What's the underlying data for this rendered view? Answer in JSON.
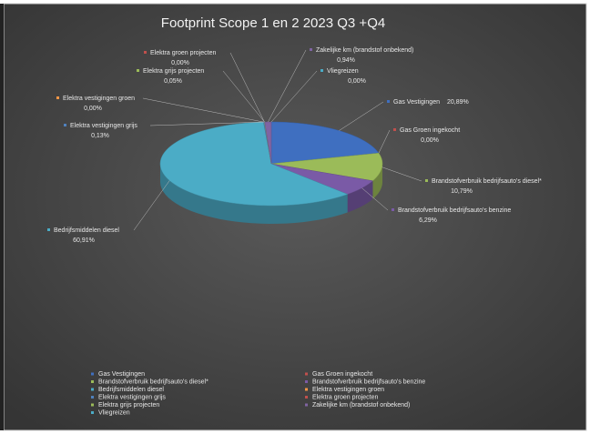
{
  "chart_data": {
    "type": "pie",
    "title": "Footprint Scope 1 en 2 2023  Q3 +Q4",
    "categories": [
      "Gas Vestigingen",
      "Gas Groen ingekocht",
      "Brandstofverbruik bedrijfsauto's diesel*",
      "Brandstofverbruik bedrijfsauto's benzine",
      "Bedrijfsmiddelen diesel",
      "Elektra vestigingen groen",
      "Elektra vestigingen grijs",
      "Elektra groen projecten",
      "Elektra grijs projecten",
      "Zakelijke km (brandstof onbekend)",
      "Vliegreizen"
    ],
    "values": [
      20.89,
      0,
      10.79,
      6.29,
      60.91,
      0,
      0.13,
      0,
      0.05,
      0.94,
      0
    ],
    "value_labels": [
      "20,89%",
      "0,00%",
      "10,79%",
      "6,29%",
      "60,91%",
      "0,00%",
      "0,13%",
      "0,00%",
      "0,05%",
      "0,94%",
      "0,00%"
    ],
    "colors": [
      "#3f6fc0",
      "#c0504d",
      "#9bbb59",
      "#7a5aa6",
      "#4bacc6",
      "#f79646",
      "#4f81bd",
      "#c0504d",
      "#9bbb59",
      "#8064a2",
      "#4bacc6"
    ],
    "legend": "bottom"
  }
}
